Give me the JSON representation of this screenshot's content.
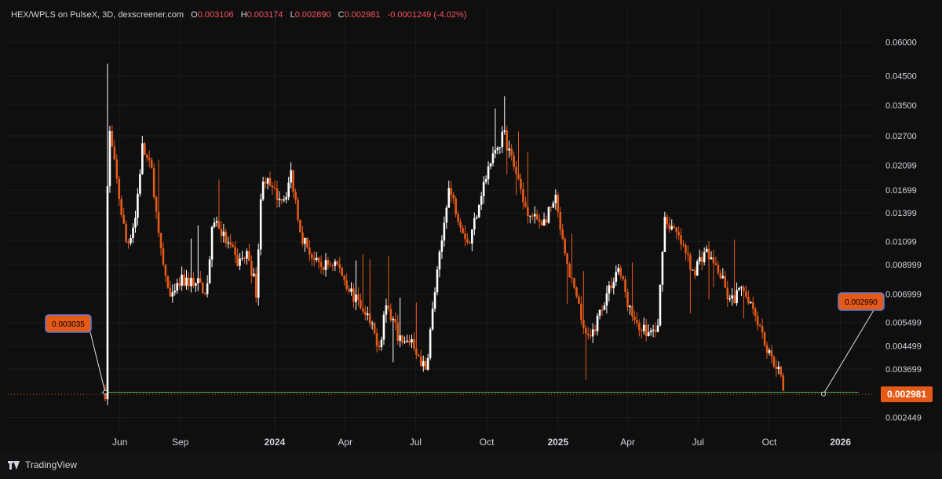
{
  "legend": {
    "symbol": "HEX/WPLS on PulseX, 3D, dexscreener.com",
    "o_label": "O",
    "o_value": "0.003106",
    "h_label": "H",
    "h_value": "0.003174",
    "l_label": "L",
    "l_value": "0.002890",
    "c_label": "C",
    "c_value": "0.002981",
    "change": "-0.0001249 (-4.02%)"
  },
  "footer": {
    "brand": "TradingView",
    "logo_icon": "tradingview-logo-icon"
  },
  "colors": {
    "background": "#0f0f0f",
    "grid": "#1c1c1c",
    "up": "#ffffff",
    "down": "#e65a18",
    "support_line": "#4caf50",
    "price_tag": "#e65a18",
    "text": "#d1d4dc"
  },
  "chart_data": {
    "type": "candlestick",
    "y_scale": "log",
    "ylim": [
      0.0022,
      0.066
    ],
    "y_ticks": [
      "0.06000",
      "0.04500",
      "0.03500",
      "0.02700",
      "0.02099",
      "0.01699",
      "0.01399",
      "0.01099",
      "0.008999",
      "0.006999",
      "0.005499",
      "0.004499",
      "0.003699",
      "0.002449"
    ],
    "x_ticks": [
      "Jun",
      "Sep",
      "2024",
      "Apr",
      "Jul",
      "Oct",
      "2025",
      "Apr",
      "Jul",
      "Oct",
      "2026"
    ],
    "x_ticks_bold": [
      "2024",
      "2025",
      "2026"
    ],
    "last_price_label": "0.002981",
    "support_level": 0.003035,
    "callouts": [
      {
        "label": "0.003035",
        "anchor_date": "2023-05-27",
        "anchor_value": 0.003035
      },
      {
        "label": "0.002990",
        "anchor_date": "2025-12-10",
        "anchor_value": 0.00299
      }
    ],
    "price_path": [
      [
        "2023-05-27",
        0.00304
      ],
      [
        "2023-05-30",
        0.0175
      ],
      [
        "2023-06-02",
        0.0275
      ],
      [
        "2023-06-14",
        0.016
      ],
      [
        "2023-06-24",
        0.0105
      ],
      [
        "2023-07-05",
        0.0135
      ],
      [
        "2023-07-14",
        0.0245
      ],
      [
        "2023-07-27",
        0.0195
      ],
      [
        "2023-08-05",
        0.0105
      ],
      [
        "2023-08-20",
        0.0065
      ],
      [
        "2023-09-01",
        0.0078
      ],
      [
        "2023-09-20",
        0.0078
      ],
      [
        "2023-10-05",
        0.0072
      ],
      [
        "2023-10-14",
        0.0135
      ],
      [
        "2023-10-30",
        0.011
      ],
      [
        "2023-11-14",
        0.0092
      ],
      [
        "2023-11-28",
        0.0098
      ],
      [
        "2023-12-08",
        0.0072
      ],
      [
        "2023-12-16",
        0.0195
      ],
      [
        "2023-12-30",
        0.0165
      ],
      [
        "2024-01-14",
        0.016
      ],
      [
        "2024-01-22",
        0.0195
      ],
      [
        "2024-02-05",
        0.0115
      ],
      [
        "2024-02-26",
        0.0088
      ],
      [
        "2024-03-20",
        0.0092
      ],
      [
        "2024-04-15",
        0.0066
      ],
      [
        "2024-04-30",
        0.0056
      ],
      [
        "2024-05-16",
        0.0045
      ],
      [
        "2024-05-23",
        0.0065
      ],
      [
        "2024-06-14",
        0.0045
      ],
      [
        "2024-06-26",
        0.0048
      ],
      [
        "2024-07-14",
        0.0036
      ],
      [
        "2024-07-26",
        0.0072
      ],
      [
        "2024-08-05",
        0.0115
      ],
      [
        "2024-08-12",
        0.0175
      ],
      [
        "2024-08-26",
        0.0135
      ],
      [
        "2024-09-08",
        0.0106
      ],
      [
        "2024-09-23",
        0.0165
      ],
      [
        "2024-10-11",
        0.0235
      ],
      [
        "2024-10-23",
        0.0275
      ],
      [
        "2024-11-08",
        0.0195
      ],
      [
        "2024-11-26",
        0.0135
      ],
      [
        "2024-12-14",
        0.013
      ],
      [
        "2024-12-29",
        0.0155
      ],
      [
        "2025-01-10",
        0.0095
      ],
      [
        "2025-01-25",
        0.0065
      ],
      [
        "2025-02-10",
        0.0046
      ],
      [
        "2025-03-01",
        0.0066
      ],
      [
        "2025-03-20",
        0.0088
      ],
      [
        "2025-04-06",
        0.0058
      ],
      [
        "2025-04-27",
        0.005
      ],
      [
        "2025-05-10",
        0.0052
      ],
      [
        "2025-05-18",
        0.0135
      ],
      [
        "2025-06-04",
        0.0115
      ],
      [
        "2025-06-25",
        0.0085
      ],
      [
        "2025-07-10",
        0.0102
      ],
      [
        "2025-07-28",
        0.0085
      ],
      [
        "2025-08-11",
        0.0065
      ],
      [
        "2025-08-25",
        0.0072
      ],
      [
        "2025-09-05",
        0.0068
      ],
      [
        "2025-09-18",
        0.0055
      ],
      [
        "2025-09-30",
        0.0042
      ],
      [
        "2025-10-12",
        0.0038
      ],
      [
        "2025-10-20",
        0.00298
      ]
    ]
  }
}
